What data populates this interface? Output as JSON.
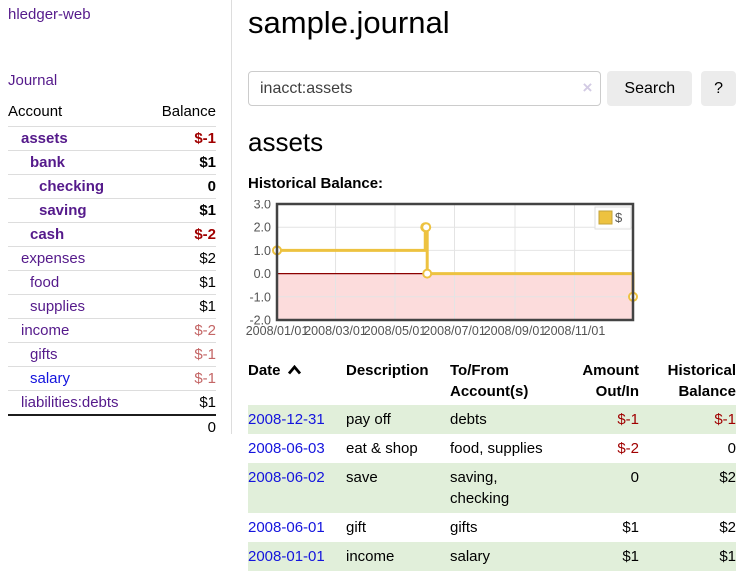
{
  "brand": "hledger-web",
  "sidebar": {
    "journal_link": "Journal",
    "accounts_table": {
      "headers": [
        "Account",
        "Balance"
      ],
      "rows": [
        {
          "name": "assets",
          "balance": "$-1"
        },
        {
          "name": "bank",
          "balance": "$1"
        },
        {
          "name": "checking",
          "balance": "0"
        },
        {
          "name": "saving",
          "balance": "$1"
        },
        {
          "name": "cash",
          "balance": "$-2"
        },
        {
          "name": "expenses",
          "balance": "$2"
        },
        {
          "name": "food",
          "balance": "$1"
        },
        {
          "name": "supplies",
          "balance": "$1"
        },
        {
          "name": "income",
          "balance": "$-2"
        },
        {
          "name": "gifts",
          "balance": "$-1"
        },
        {
          "name": "salary",
          "balance": "$-1"
        },
        {
          "name": "liabilities:debts",
          "balance": "$1"
        }
      ],
      "total": "0"
    }
  },
  "header": {
    "title": "sample.journal"
  },
  "search": {
    "value": "inacct:assets",
    "clear_icon": "×",
    "button_label": "Search",
    "help_label": "?"
  },
  "account_page": {
    "heading": "assets",
    "chart_label": "Historical Balance:"
  },
  "chart_data": {
    "type": "line",
    "title": "Historical Balance",
    "steps": true,
    "series": [
      {
        "name": "$",
        "color": "#edc240",
        "points": [
          [
            "2008-01-01",
            1
          ],
          [
            "2008-06-01",
            2
          ],
          [
            "2008-06-02",
            2
          ],
          [
            "2008-06-03",
            0
          ],
          [
            "2008-12-31",
            -1
          ]
        ]
      }
    ],
    "xlim": [
      "2008-01-01",
      "2008-12-31"
    ],
    "ylim": [
      -2,
      3
    ],
    "y_ticks": [
      3,
      2,
      1,
      0,
      -1,
      -2
    ],
    "x_ticks": [
      "2008/01/01",
      "2008/03/01",
      "2008/05/01",
      "2008/07/01",
      "2008/09/01",
      "2008/11/01"
    ],
    "legend": {
      "position": "top-right",
      "label": "$"
    },
    "grid": true,
    "zero_line_color": "#8b0000",
    "negative_region_color": "#fcdcdc"
  },
  "register_table": {
    "headers": {
      "date": "Date",
      "description": "Description",
      "tofrom_line1": "To/From",
      "tofrom_line2": "Account(s)",
      "amount_line1": "Amount",
      "amount_line2": "Out/In",
      "balance_line1": "Historical",
      "balance_line2": "Balance"
    },
    "rows": [
      {
        "date": "2008-12-31",
        "description": "pay off",
        "accounts": "debts",
        "amount": "$-1",
        "balance": "$-1"
      },
      {
        "date": "2008-06-03",
        "description": "eat & shop",
        "accounts": "food, supplies",
        "amount": "$-2",
        "balance": "0"
      },
      {
        "date": "2008-06-02",
        "description": "save",
        "accounts": "saving,\nchecking",
        "amount": "0",
        "balance": "$2"
      },
      {
        "date": "2008-06-01",
        "description": "gift",
        "accounts": "gifts",
        "amount": "$1",
        "balance": "$2"
      },
      {
        "date": "2008-01-01",
        "description": "income",
        "accounts": "salary",
        "amount": "$1",
        "balance": "$1"
      }
    ]
  },
  "colors": {
    "link_purple": "#551a8b",
    "link_blue": "#1414dd",
    "negative_red": "#a00000",
    "negative_soft_red": "#c46666",
    "row_stripe_green": "#e1efda",
    "chart_line_gold": "#edc240",
    "chart_negative_pink": "#fcdcdc",
    "chart_zero_line": "#8b0000"
  }
}
